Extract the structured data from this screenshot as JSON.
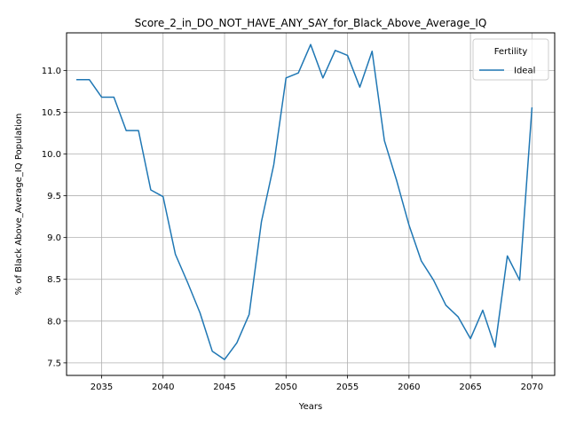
{
  "chart_data": {
    "type": "line",
    "title": "Score_2_in_DO_NOT_HAVE_ANY_SAY_for_Black_Above_Average_IQ",
    "xlabel": "Years",
    "ylabel": "% of Black Above_Average_IQ Population",
    "xlim": [
      2032.15,
      2071.85
    ],
    "ylim": [
      7.35,
      11.45
    ],
    "xticks": [
      2035,
      2040,
      2045,
      2050,
      2055,
      2060,
      2065,
      2070
    ],
    "yticks": [
      7.5,
      8.0,
      8.5,
      9.0,
      9.5,
      10.0,
      10.5,
      11.0
    ],
    "xtick_labels": [
      "2035",
      "2040",
      "2045",
      "2050",
      "2055",
      "2060",
      "2065",
      "2070"
    ],
    "ytick_labels": [
      "7.5",
      "8.0",
      "8.5",
      "9.0",
      "9.5",
      "10.0",
      "10.5",
      "11.0"
    ],
    "grid": true,
    "legend": {
      "title": "Fertility",
      "placement": "upper-right"
    },
    "series": [
      {
        "name": "Ideal",
        "color": "#1f77b4",
        "x": [
          2033,
          2034,
          2035,
          2036,
          2037,
          2038,
          2039,
          2040,
          2041,
          2042,
          2043,
          2044,
          2045,
          2046,
          2047,
          2048,
          2049,
          2050,
          2051,
          2052,
          2053,
          2054,
          2055,
          2056,
          2057,
          2058,
          2059,
          2060,
          2061,
          2062,
          2063,
          2064,
          2065,
          2066,
          2067,
          2068,
          2069,
          2070
        ],
        "values": [
          10.89,
          10.89,
          10.68,
          10.68,
          10.28,
          10.28,
          9.57,
          9.49,
          8.8,
          8.46,
          8.1,
          7.64,
          7.54,
          7.74,
          8.08,
          9.19,
          9.87,
          10.91,
          10.97,
          11.31,
          10.91,
          11.24,
          11.18,
          10.8,
          11.23,
          10.16,
          9.68,
          9.15,
          8.72,
          8.49,
          8.19,
          8.05,
          7.79,
          8.13,
          7.69,
          8.78,
          8.49,
          10.55
        ]
      }
    ]
  }
}
